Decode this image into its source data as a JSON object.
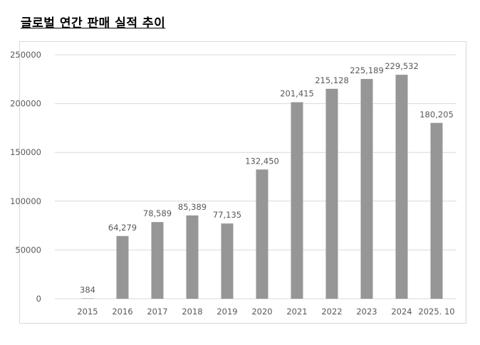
{
  "chart_data": {
    "type": "bar",
    "title": "글로벌 연간 판매 실적 추이",
    "xlabel": "",
    "ylabel": "",
    "categories": [
      "2015",
      "2016",
      "2017",
      "2018",
      "2019",
      "2020",
      "2021",
      "2022",
      "2023",
      "2024",
      "2025. 10"
    ],
    "values": [
      384,
      64279,
      78589,
      85389,
      77135,
      132450,
      201415,
      215128,
      225189,
      229532,
      180205
    ],
    "data_labels": [
      "384",
      "64,279",
      "78,589",
      "85,389",
      "77,135",
      "132,450",
      "201,415",
      "215,128",
      "225,189",
      "229,532",
      "180,205"
    ],
    "ylim": [
      0,
      250000
    ],
    "yticks": [
      "0",
      "50000",
      "100000",
      "150000",
      "200000",
      "250000"
    ],
    "grid": true,
    "legend": "none",
    "bar_color": "#969696",
    "grid_color": "#d9d9d9"
  }
}
